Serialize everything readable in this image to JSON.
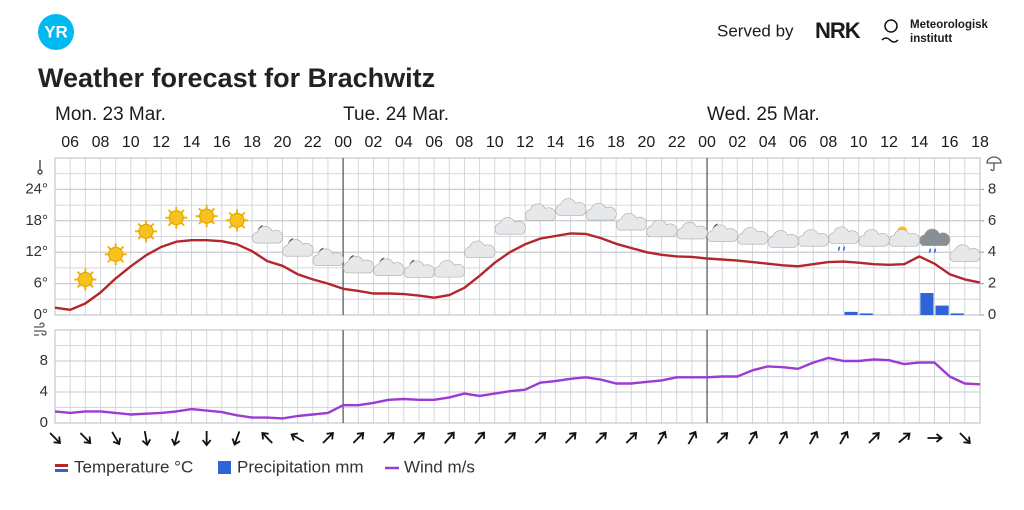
{
  "header": {
    "logo": "YR",
    "served_by": "Served by",
    "provider": "NRK",
    "institute": [
      "Meteorologisk",
      "institutt"
    ]
  },
  "chart_data": {
    "type": "meteogram",
    "title": "Weather forecast for Brachwitz",
    "days": [
      "Mon. 23 Mar.",
      "Tue. 24 Mar.",
      "Wed. 25 Mar."
    ],
    "categories": [
      null,
      "06",
      null,
      "08",
      null,
      "10",
      null,
      "12",
      null,
      "14",
      null,
      "16",
      null,
      "18",
      null,
      "20",
      null,
      "22",
      null,
      "00",
      null,
      "02",
      null,
      "04",
      null,
      "06",
      null,
      "08",
      null,
      "10",
      null,
      "12",
      null,
      "14",
      null,
      "16",
      null,
      "18",
      null,
      "20",
      null,
      "22",
      null,
      "00",
      null,
      "02",
      null,
      "04",
      null,
      "06",
      null,
      "08",
      null,
      "10",
      null,
      "12",
      null,
      "14",
      null,
      "16",
      null,
      "18"
    ],
    "series": [
      {
        "name": "Temperature °C",
        "color": "#b3262c",
        "axis": "y",
        "values": [
          1.4,
          1.0,
          2.2,
          4.3,
          7.0,
          9.3,
          11.4,
          13.0,
          14.0,
          14.3,
          14.3,
          14.1,
          13.5,
          12.2,
          10.3,
          9.4,
          7.8,
          6.8,
          6.0,
          5.0,
          4.6,
          4.1,
          4.1,
          4.0,
          3.7,
          3.3,
          3.8,
          5.2,
          7.5,
          10.0,
          12.0,
          13.5,
          14.6,
          15.1,
          15.6,
          15.5,
          14.7,
          13.6,
          12.8,
          12.0,
          11.5,
          11.2,
          11.1,
          10.8,
          10.6,
          10.4,
          10.1,
          9.8,
          9.5,
          9.3,
          9.7,
          10.1,
          10.2,
          10.0,
          9.7,
          9.6,
          9.7,
          11.2,
          9.8,
          7.8,
          6.8,
          6.2
        ]
      },
      {
        "name": "Precipitation mm",
        "color": "#2f64d6",
        "axis": "y2",
        "values": [
          0,
          0,
          0,
          0,
          0,
          0,
          0,
          0,
          0,
          0,
          0,
          0,
          0,
          0,
          0,
          0,
          0,
          0,
          0,
          0,
          0,
          0,
          0,
          0,
          0,
          0,
          0,
          0,
          0,
          0,
          0,
          0,
          0,
          0,
          0,
          0,
          0,
          0,
          0,
          0,
          0,
          0,
          0,
          0,
          0,
          0,
          0,
          0,
          0,
          0,
          0,
          0,
          0.2,
          0.1,
          0,
          0,
          0,
          1.4,
          0.6,
          0.1,
          0,
          0
        ]
      },
      {
        "name": "Wind m/s",
        "color": "#9b3bd4",
        "axis": "y3",
        "values": [
          1.5,
          1.3,
          1.5,
          1.5,
          1.3,
          1.1,
          1.2,
          1.3,
          1.5,
          1.8,
          1.6,
          1.4,
          1.0,
          0.7,
          0.7,
          0.6,
          0.9,
          1.1,
          1.3,
          2.3,
          2.3,
          2.6,
          3.0,
          3.1,
          3.0,
          3.0,
          3.3,
          3.8,
          3.5,
          3.8,
          4.1,
          4.3,
          5.2,
          5.4,
          5.7,
          5.9,
          5.6,
          5.1,
          5.1,
          5.3,
          5.5,
          5.9,
          5.9,
          5.9,
          6.0,
          6.0,
          6.8,
          7.3,
          7.2,
          7.0,
          7.8,
          8.4,
          8.0,
          8.0,
          8.2,
          8.1,
          7.6,
          7.8,
          7.8,
          6.0,
          5.1,
          5.0
        ]
      }
    ],
    "wind_direction": [
      135,
      null,
      135,
      null,
      150,
      null,
      170,
      null,
      195,
      null,
      180,
      null,
      200,
      null,
      315,
      null,
      300,
      null,
      45,
      null,
      45,
      null,
      45,
      null,
      45,
      null,
      40,
      null,
      40,
      null,
      45,
      null,
      45,
      null,
      45,
      null,
      45,
      null,
      45,
      null,
      30,
      null,
      30,
      null,
      45,
      null,
      30,
      null,
      30,
      null,
      30,
      null,
      30,
      null,
      45,
      null,
      50,
      null,
      90,
      null,
      135
    ],
    "ylim": [
      0,
      30
    ],
    "yticks": [
      {
        "value": 0,
        "label": "0°"
      },
      {
        "value": 6,
        "label": "6°"
      },
      {
        "value": 12,
        "label": "12°"
      },
      {
        "value": 18,
        "label": "18°"
      },
      {
        "value": 24,
        "label": "24°"
      }
    ],
    "y2lim": [
      0,
      10
    ],
    "y2ticks": [
      0,
      2,
      4,
      6,
      8
    ],
    "y3lim": [
      0,
      12
    ],
    "y3ticks": [
      0,
      4,
      8
    ],
    "grid": true,
    "legend": "bottom-left"
  }
}
